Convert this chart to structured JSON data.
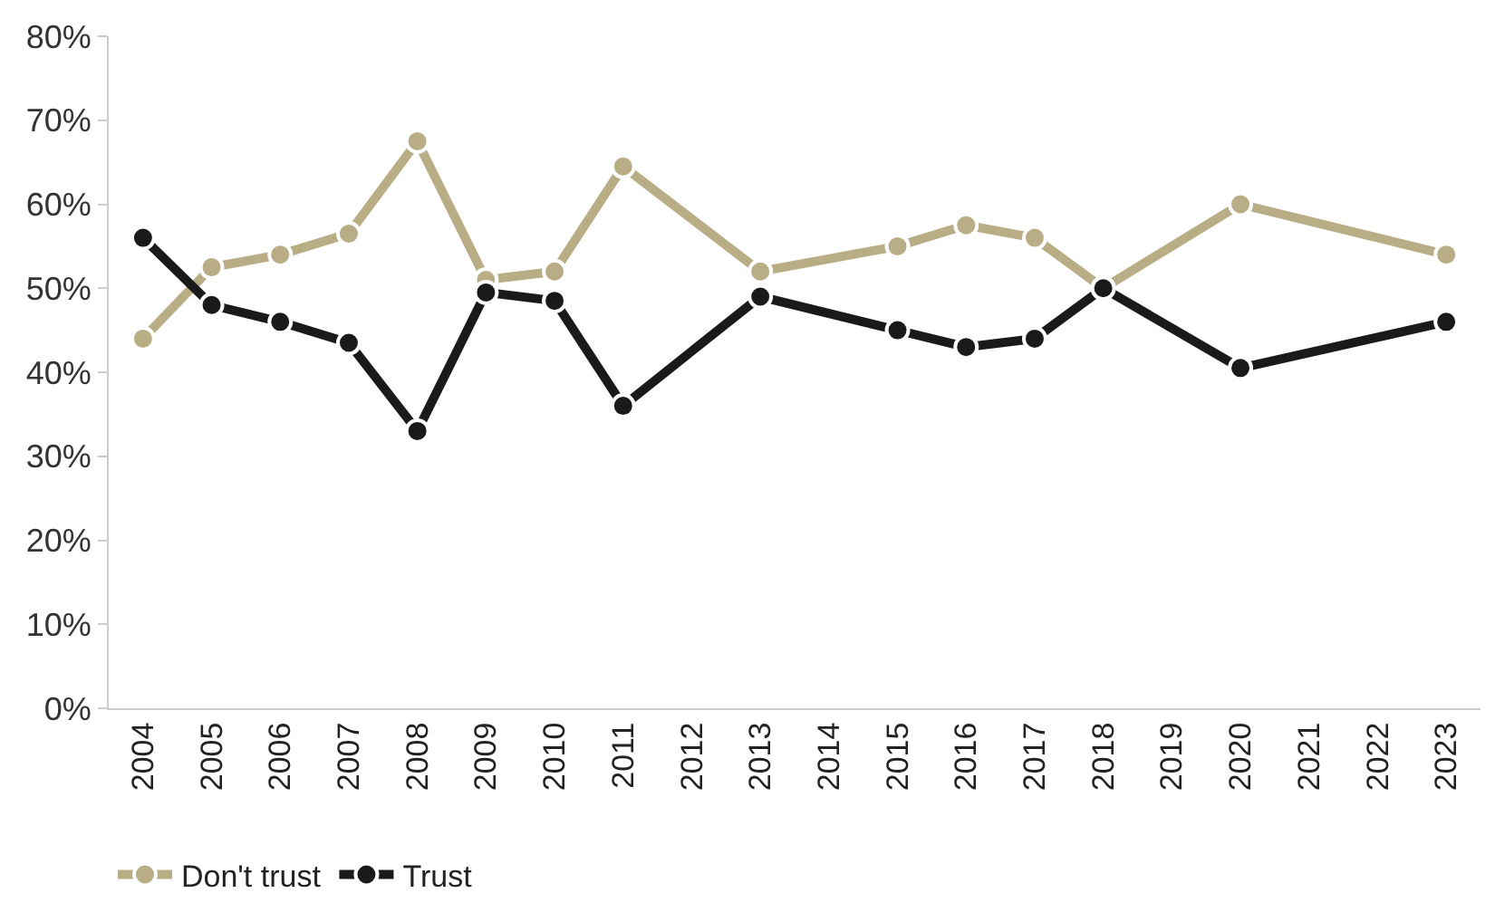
{
  "chart_data": {
    "type": "line",
    "categories": [
      "2004",
      "2005",
      "2006",
      "2007",
      "2008",
      "2009",
      "2010",
      "2011",
      "2012",
      "2013",
      "2014",
      "2015",
      "2016",
      "2017",
      "2018",
      "2019",
      "2020",
      "2021",
      "2022",
      "2023"
    ],
    "series": [
      {
        "name": "Don't trust",
        "color": "#b8ad85",
        "values": [
          44,
          52.5,
          54,
          56.5,
          67.5,
          51,
          52,
          64.5,
          null,
          52,
          null,
          55,
          57.5,
          56,
          50,
          null,
          60,
          null,
          null,
          54
        ]
      },
      {
        "name": "Trust",
        "color": "#1a1a1a",
        "values": [
          56,
          48,
          46,
          43.5,
          33,
          49.5,
          48.5,
          36,
          null,
          49,
          null,
          45,
          43,
          44,
          50,
          null,
          40.5,
          null,
          null,
          46
        ]
      }
    ],
    "ylim": [
      0,
      80
    ],
    "yticks": [
      {
        "value": 0,
        "label": "0%"
      },
      {
        "value": 10,
        "label": "10%"
      },
      {
        "value": 20,
        "label": "20%"
      },
      {
        "value": 30,
        "label": "30%"
      },
      {
        "value": 40,
        "label": "40%"
      },
      {
        "value": 50,
        "label": "50%"
      },
      {
        "value": 60,
        "label": "60%"
      },
      {
        "value": 70,
        "label": "70%"
      },
      {
        "value": 80,
        "label": "80%"
      }
    ],
    "legend": "bottom",
    "marker": "circle",
    "line_style": "solid"
  }
}
